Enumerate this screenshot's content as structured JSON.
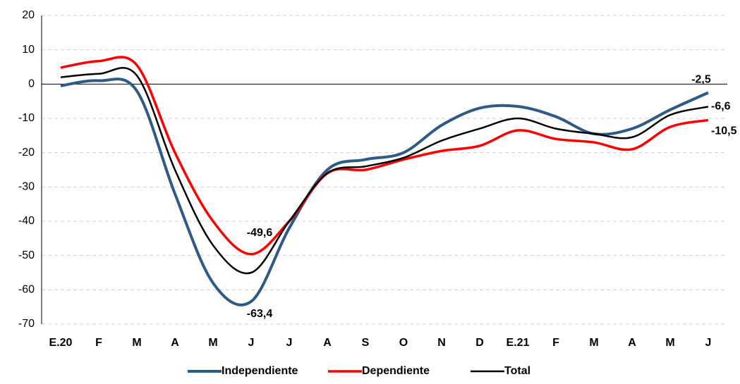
{
  "chart_data": {
    "type": "line",
    "categories": [
      "E.20",
      "F",
      "M",
      "A",
      "M",
      "J",
      "J",
      "A",
      "S",
      "O",
      "N",
      "D",
      "E.21",
      "F",
      "M",
      "A",
      "M",
      "J"
    ],
    "series": [
      {
        "name": "Independiente",
        "color": "#2e5a87",
        "width": 4,
        "values": [
          -0.5,
          1,
          -2,
          -32,
          -58,
          -63.4,
          -42,
          -25,
          -22,
          -20,
          -12,
          -7,
          -6.5,
          -9.5,
          -14.5,
          -13,
          -7.5,
          -2.5
        ],
        "value_labels": [
          null,
          null,
          null,
          null,
          null,
          "-63,4",
          null,
          null,
          null,
          null,
          null,
          null,
          null,
          null,
          null,
          null,
          null,
          "-2,5"
        ]
      },
      {
        "name": "Dependiente",
        "color": "#ff0000",
        "width": 3.5,
        "values": [
          4.8,
          6.7,
          5.5,
          -20,
          -40,
          -49.6,
          -40,
          -26,
          -25,
          -22,
          -19.5,
          -18,
          -13.5,
          -16,
          -17,
          -19,
          -12.5,
          -10.5
        ],
        "value_labels": [
          null,
          null,
          null,
          null,
          null,
          "-49,6",
          null,
          null,
          null,
          null,
          null,
          null,
          null,
          null,
          null,
          null,
          null,
          "-10,5"
        ]
      },
      {
        "name": "Total",
        "color": "#000000",
        "width": 2.5,
        "values": [
          2,
          3,
          2.5,
          -25,
          -47,
          -55,
          -40,
          -26,
          -24,
          -21.5,
          -16.5,
          -13,
          -10,
          -13,
          -14.5,
          -15.5,
          -9,
          -6.6
        ],
        "value_labels": [
          null,
          null,
          null,
          null,
          null,
          null,
          null,
          null,
          null,
          null,
          null,
          null,
          null,
          null,
          null,
          null,
          null,
          "-6,6"
        ]
      }
    ],
    "ylim": [
      -70,
      20
    ],
    "yticks": [
      -70,
      -60,
      -50,
      -40,
      -30,
      -20,
      -10,
      0,
      10,
      20
    ],
    "grid": true,
    "legend": "bottom"
  }
}
